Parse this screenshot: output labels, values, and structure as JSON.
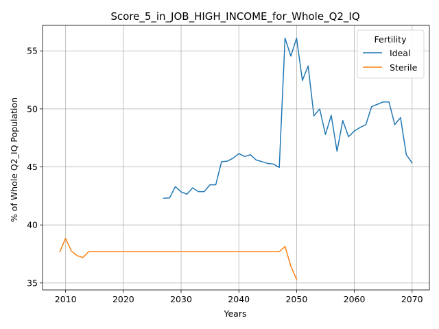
{
  "chart_data": {
    "type": "line",
    "title": "Score_5_in_JOB_HIGH_INCOME_for_Whole_Q2_IQ",
    "xlabel": "Years",
    "ylabel": "% of Whole Q2_IQ Population",
    "xlim": [
      2006,
      2073
    ],
    "ylim": [
      34.4,
      57.2
    ],
    "xticks": [
      2010,
      2020,
      2030,
      2040,
      2050,
      2060,
      2070
    ],
    "yticks": [
      35,
      40,
      45,
      50,
      55
    ],
    "grid": true,
    "legend": {
      "title": "Fertility",
      "placement": "top-right"
    },
    "series": [
      {
        "name": "Ideal",
        "color": "#1f77b4",
        "x": [
          2027,
          2028,
          2029,
          2030,
          2031,
          2032,
          2033,
          2034,
          2035,
          2036,
          2037,
          2038,
          2039,
          2040,
          2041,
          2042,
          2043,
          2044,
          2045,
          2046,
          2047,
          2048,
          2049,
          2050,
          2051,
          2052,
          2053,
          2054,
          2055,
          2056,
          2057,
          2058,
          2059,
          2060,
          2061,
          2062,
          2063,
          2064,
          2065,
          2066,
          2067,
          2068,
          2069,
          2070
        ],
        "y": [
          42.3,
          42.33,
          43.3,
          42.85,
          42.65,
          43.2,
          42.87,
          42.87,
          43.46,
          43.46,
          45.45,
          45.5,
          45.75,
          46.15,
          45.9,
          46.05,
          45.6,
          45.45,
          45.3,
          45.25,
          44.95,
          56.1,
          54.55,
          56.1,
          52.45,
          53.7,
          49.4,
          50.0,
          47.8,
          49.45,
          46.35,
          49.0,
          47.6,
          48.1,
          48.4,
          48.65,
          50.2,
          50.4,
          50.6,
          50.6,
          48.65,
          49.25,
          46.05,
          45.35
        ]
      },
      {
        "name": "Sterile",
        "color": "#ff7f0e",
        "x": [
          2009,
          2010,
          2011,
          2012,
          2013,
          2014,
          2015,
          2016,
          2017,
          2018,
          2019,
          2020,
          2021,
          2022,
          2023,
          2024,
          2025,
          2026,
          2027,
          2028,
          2029,
          2030,
          2031,
          2032,
          2033,
          2034,
          2035,
          2036,
          2037,
          2038,
          2039,
          2040,
          2041,
          2042,
          2043,
          2044,
          2045,
          2046,
          2047,
          2048,
          2049,
          2050
        ],
        "y": [
          37.7,
          38.85,
          37.75,
          37.35,
          37.2,
          37.7,
          37.7,
          37.7,
          37.7,
          37.7,
          37.7,
          37.7,
          37.7,
          37.7,
          37.7,
          37.7,
          37.7,
          37.7,
          37.7,
          37.7,
          37.7,
          37.7,
          37.7,
          37.7,
          37.7,
          37.7,
          37.7,
          37.7,
          37.7,
          37.7,
          37.7,
          37.7,
          37.7,
          37.7,
          37.7,
          37.7,
          37.7,
          37.7,
          37.7,
          38.15,
          36.45,
          35.3
        ]
      }
    ]
  }
}
